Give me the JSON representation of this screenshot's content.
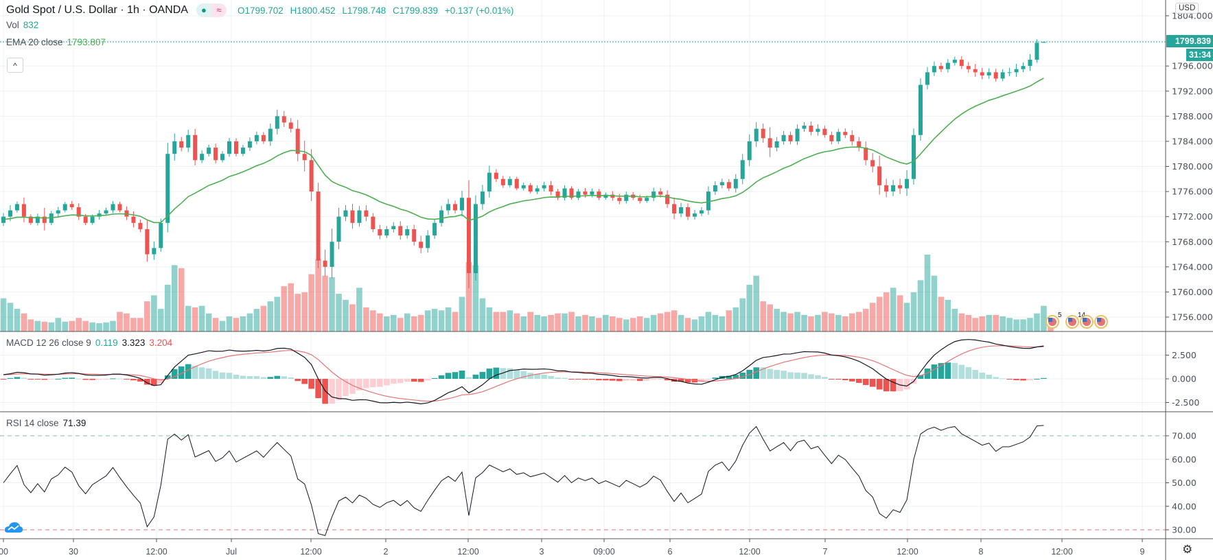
{
  "header": {
    "title": "Gold Spot / U.S. Dollar · 1h · OANDA",
    "status_icon_1": "dot",
    "status_icon_2": "≈",
    "open": "O1799.702",
    "high": "H1800.452",
    "low": "L1798.748",
    "close": "C1799.839",
    "change": "+0.137 (+0.01%)"
  },
  "volume_legend": {
    "label": "Vol",
    "value": "832"
  },
  "ema_legend": {
    "label": "EMA 20 close",
    "value": "1793.807"
  },
  "collapse_button": "^",
  "currency_button": "USD",
  "last_price_label": "1799.839",
  "countdown_label": "31:34",
  "macd_legend": {
    "label": "MACD 12 26 close 9",
    "hist": "0.119",
    "macd": "3.323",
    "signal": "3.204"
  },
  "rsi_legend": {
    "label": "RSI 14 close",
    "value": "71.39"
  },
  "events": [
    {
      "count": "5"
    },
    {
      "count": "14"
    },
    {
      "count": ""
    },
    {
      "count": ""
    }
  ],
  "colors": {
    "up": "#26a69a",
    "down": "#ef5350",
    "ema": "#4caf50",
    "macd": "#131722",
    "signal": "#e57373"
  },
  "chart_data": {
    "type": "candlestick",
    "symbol": "XAUUSD",
    "interval": "1h",
    "price_ticks": [
      "1756.000",
      "1760.000",
      "1764.000",
      "1768.000",
      "1772.000",
      "1776.000",
      "1780.000",
      "1784.000",
      "1788.000",
      "1792.000",
      "1796.000",
      "1800.000",
      "1804.000"
    ],
    "price_ylim": [
      1752,
      1806.5
    ],
    "macd_ticks": [
      "2.500",
      "0.000",
      "-2.500"
    ],
    "rsi_ticks": [
      "70.00",
      "60.00",
      "50.00",
      "40.00",
      "30.00"
    ],
    "rsi_bands": [
      70,
      30
    ],
    "time_ticks": [
      "00",
      "30",
      "12:00",
      "Jul",
      "12:00",
      "2",
      "12:00",
      "3",
      "09:00",
      "6",
      "12:00",
      "7",
      "12:00",
      "8",
      "12:00",
      "9"
    ],
    "last_close": 1799.839,
    "closes": [
      1772,
      1773,
      1774,
      1772,
      1771,
      1772,
      1771,
      1772.5,
      1773,
      1774,
      1773.5,
      1772,
      1771,
      1772,
      1772.5,
      1773,
      1774,
      1773,
      1772,
      1771,
      1770,
      1766,
      1767,
      1771,
      1782,
      1784,
      1783,
      1785,
      1781,
      1782,
      1783,
      1781,
      1782,
      1784,
      1782,
      1783,
      1784,
      1785,
      1784,
      1786,
      1788,
      1787,
      1786,
      1782,
      1781,
      1776,
      1765,
      1764,
      1768,
      1772,
      1773,
      1771,
      1773,
      1772,
      1770,
      1769,
      1770,
      1770.5,
      1769,
      1770,
      1768,
      1767,
      1769,
      1771,
      1773,
      1774,
      1773,
      1775,
      1763,
      1774,
      1776,
      1779,
      1778,
      1777,
      1778,
      1776.5,
      1777,
      1776,
      1776.5,
      1777,
      1776,
      1775,
      1776.5,
      1775,
      1776,
      1775.5,
      1776,
      1775,
      1775.5,
      1775,
      1774.5,
      1775.5,
      1775,
      1774.5,
      1775,
      1776,
      1775.5,
      1774,
      1772.5,
      1773.5,
      1772,
      1772.5,
      1773,
      1776,
      1777,
      1777.5,
      1776.5,
      1778,
      1781,
      1784,
      1786,
      1784.5,
      1783,
      1784,
      1785,
      1784,
      1786,
      1786.5,
      1785.5,
      1786,
      1785,
      1784,
      1785.5,
      1785,
      1784,
      1783,
      1781,
      1780,
      1777,
      1776,
      1777,
      1776.5,
      1778,
      1785,
      1793,
      1795,
      1796,
      1795.5,
      1796.5,
      1797,
      1796,
      1795.5,
      1795,
      1794.5,
      1795,
      1794,
      1795,
      1795,
      1795.5,
      1796,
      1797,
      1799.7,
      1799.839
    ],
    "wicks": [
      0.8,
      1.2,
      0.6,
      1.5,
      0.5,
      0.7,
      2,
      0.6,
      0.8,
      0.5,
      0.7,
      0.9,
      0.6,
      0.5,
      0.8,
      0.6,
      0.7,
      0.5,
      0.9,
      1.2,
      0.8,
      2,
      1.5,
      1,
      2.5,
      1.8,
      1,
      1.2,
      1.4,
      0.8,
      0.7,
      0.9,
      0.6,
      0.8,
      0.7,
      0.6,
      0.9,
      0.8,
      0.7,
      1.2,
      1.5,
      1.2,
      1,
      2,
      3,
      2.5,
      2,
      2.5,
      3,
      2,
      1.2,
      1.5,
      1,
      1.2,
      0.8,
      1,
      0.7,
      0.9,
      1.1,
      0.8,
      1,
      1.4,
      1.2,
      0.9,
      1,
      1.2,
      0.8,
      1.6,
      4,
      2,
      1.5,
      1.6,
      0.8,
      0.7,
      0.6,
      0.5,
      0.6,
      0.5,
      0.7,
      0.8,
      1,
      0.6,
      0.7,
      0.5,
      0.6,
      0.8,
      0.7,
      0.6,
      0.5,
      0.8,
      0.9,
      0.7,
      0.6,
      0.7,
      0.5,
      0.9,
      0.8,
      1,
      1.5,
      1,
      0.9,
      0.8,
      0.7,
      1.2,
      0.9,
      0.8,
      0.7,
      1.1,
      1.4,
      1.6,
      1.5,
      1.2,
      2.5,
      1,
      0.9,
      0.8,
      1,
      0.8,
      0.9,
      1,
      0.7,
      0.8,
      0.7,
      0.8,
      1.1,
      1,
      1.4,
      1.6,
      2.5,
      1.5,
      1.2,
      1.5,
      2,
      1.5,
      1.5,
      1.2,
      1,
      0.8,
      0.9,
      0.7,
      0.8,
      0.9,
      1.2,
      1,
      0.9,
      0.8,
      0.7,
      1,
      1.2,
      0.8,
      1.3,
      0.8
    ],
    "volume": [
      2200,
      1900,
      1500,
      1200,
      800,
      700,
      650,
      600,
      900,
      650,
      700,
      900,
      700,
      600,
      550,
      600,
      700,
      1300,
      1200,
      900,
      900,
      2000,
      2400,
      1500,
      3100,
      4400,
      4200,
      1700,
      1600,
      1700,
      1200,
      900,
      700,
      1000,
      900,
      1000,
      1200,
      1500,
      1700,
      2000,
      2300,
      3000,
      3200,
      2500,
      2600,
      3800,
      4800,
      3700,
      3600,
      2500,
      2100,
      1800,
      2900,
      1600,
      1400,
      1200,
      1000,
      1100,
      900,
      1200,
      1000,
      1100,
      1400,
      1500,
      1400,
      1600,
      1300,
      2300,
      4600,
      4400,
      2200,
      1600,
      1300,
      1300,
      1400,
      1200,
      1000,
      1300,
      1100,
      1000,
      1100,
      1200,
      1200,
      1300,
      1000,
      1100,
      1000,
      900,
      1100,
      1000,
      900,
      800,
      900,
      1000,
      900,
      1100,
      1200,
      1300,
      1400,
      1100,
      900,
      800,
      1000,
      1300,
      1100,
      1000,
      1400,
      1600,
      2200,
      3100,
      3700,
      2000,
      1800,
      1500,
      1300,
      1200,
      1300,
      1100,
      1000,
      1100,
      1300,
      1200,
      1100,
      1000,
      1200,
      1300,
      1500,
      1900,
      2300,
      2600,
      2900,
      2400,
      1900,
      2600,
      3400,
      5100,
      3700,
      2300,
      2100,
      1500,
      1200,
      1100,
      900,
      1000,
      1100,
      1100,
      1000,
      900,
      800,
      800,
      900,
      1200,
      1700,
      832
    ]
  }
}
